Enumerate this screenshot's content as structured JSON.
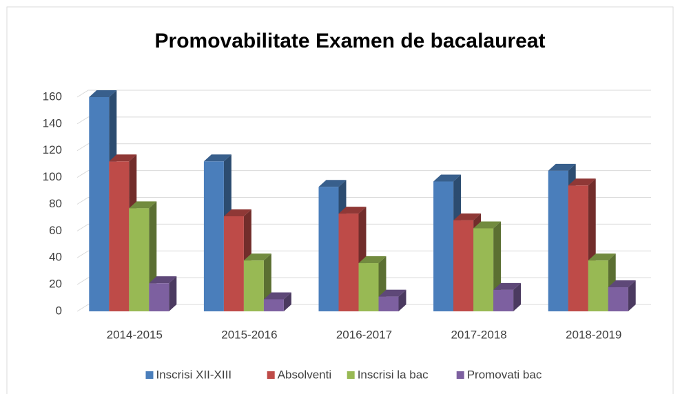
{
  "chart_data": {
    "type": "bar3d",
    "title": "Promovabilitate Examen de bacalaureat",
    "categories": [
      "2014-2015",
      "2015-2016",
      "2016-2017",
      "2017-2018",
      "2018-2019"
    ],
    "series": [
      {
        "name": "Inscrisi XII-XIII",
        "color": "#4a7ebb",
        "values": [
          160,
          112,
          93,
          97,
          105
        ]
      },
      {
        "name": "Absolventi",
        "color": "#be4b48",
        "values": [
          112,
          71,
          73,
          68,
          94
        ]
      },
      {
        "name": "Inscrisi la bac",
        "color": "#98b954",
        "values": [
          77,
          38,
          36,
          62,
          38
        ]
      },
      {
        "name": "Promovati bac",
        "color": "#7d60a0",
        "values": [
          21,
          9,
          11,
          16,
          18
        ]
      }
    ],
    "ylim": [
      0,
      160
    ],
    "yticks": [
      0,
      20,
      40,
      60,
      80,
      100,
      120,
      140,
      160
    ],
    "grid": true,
    "legend": "bottom"
  }
}
